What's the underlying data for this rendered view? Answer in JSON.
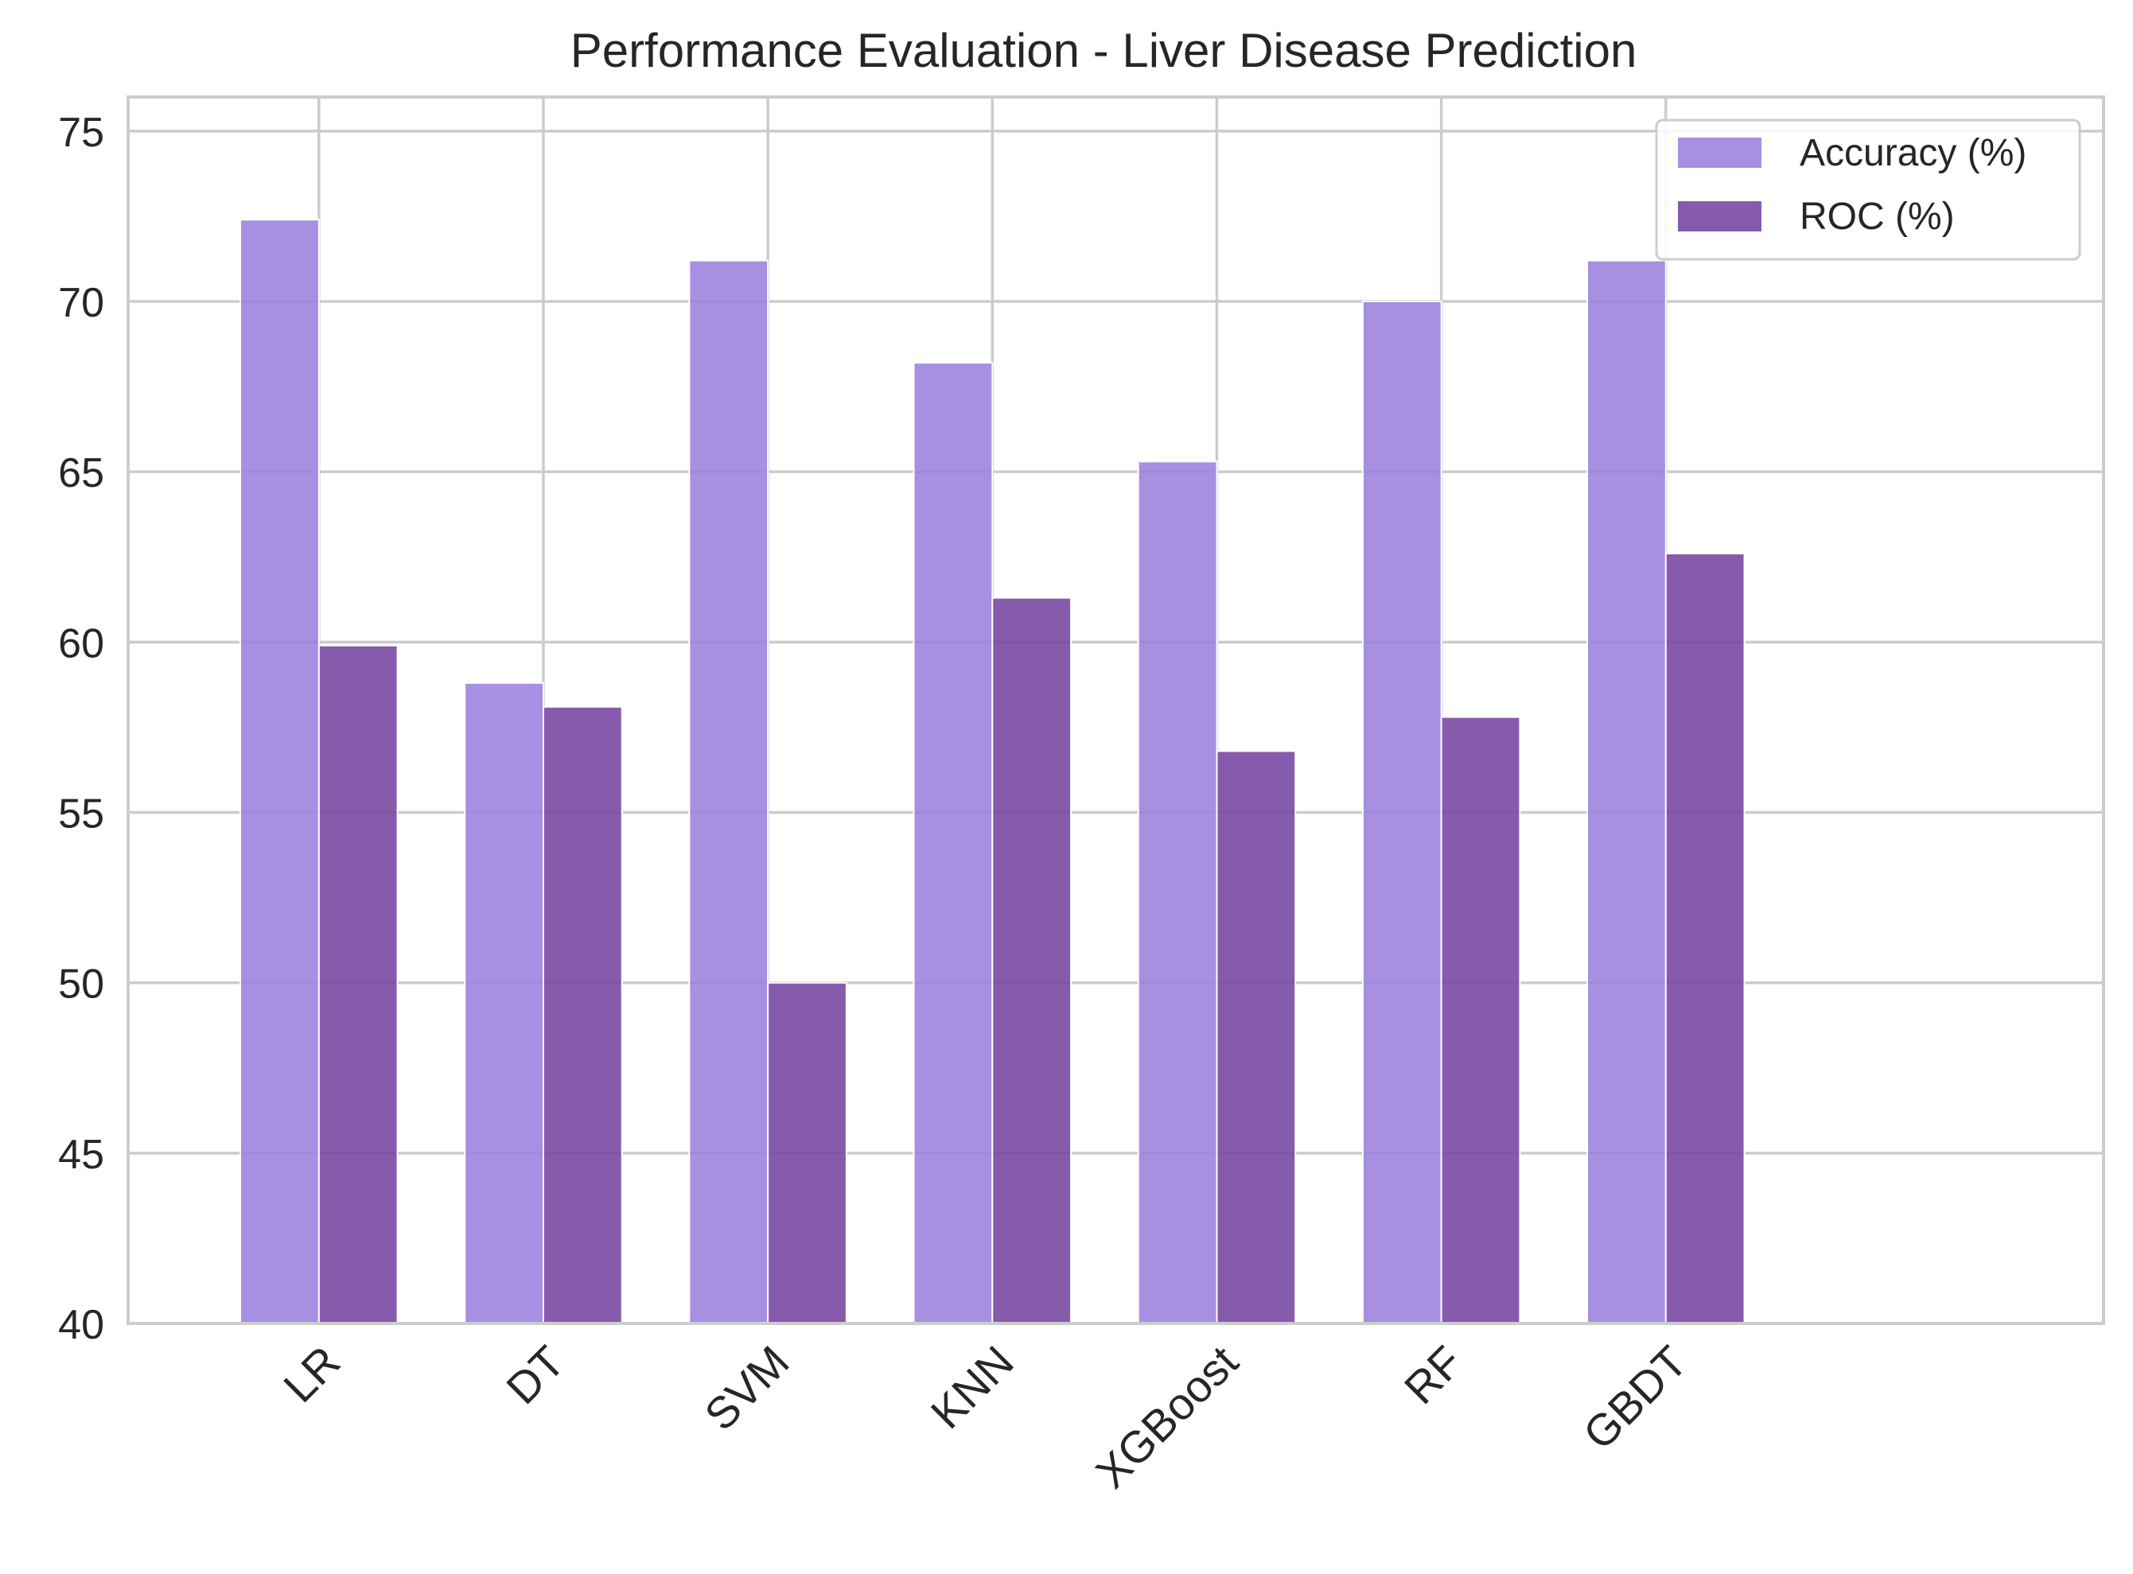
{
  "chart_data": {
    "type": "bar",
    "title": "Performance Evaluation - Liver Disease Prediction",
    "xlabel": "",
    "ylabel": "",
    "categories": [
      "LR",
      "DT",
      "SVM",
      "KNN",
      "XGBoost",
      "RF",
      "GBDT"
    ],
    "series": [
      {
        "name": "Accuracy (%)",
        "values": [
          72.4,
          58.8,
          71.2,
          68.2,
          65.3,
          70.0,
          71.2
        ],
        "color": "#9b7fdd"
      },
      {
        "name": "ROC (%)",
        "values": [
          59.9,
          58.1,
          50.0,
          61.3,
          56.8,
          57.8,
          62.6
        ],
        "color": "#76449f"
      }
    ],
    "ylim": [
      40,
      76
    ],
    "yticks": [
      40,
      45,
      50,
      55,
      60,
      65,
      70,
      75
    ],
    "grid": true,
    "legend": "upper right"
  }
}
